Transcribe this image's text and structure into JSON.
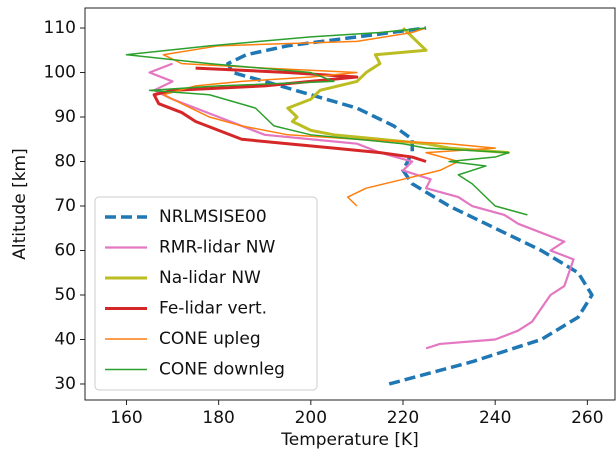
{
  "chart_data": {
    "type": "line",
    "xlabel": "Temperature [K]",
    "ylabel": "Altitude [km]",
    "xlim": [
      151,
      266
    ],
    "ylim": [
      26.4,
      114.5
    ],
    "xticks": [
      160,
      180,
      200,
      220,
      240,
      260
    ],
    "yticks": [
      30,
      40,
      50,
      60,
      70,
      80,
      90,
      100,
      110
    ],
    "legend": "lower left",
    "series": [
      {
        "name": "NRLMSISE00",
        "color": "#1f77b4",
        "style": "dashed",
        "x": [
          217,
          235,
          250,
          258,
          261,
          258,
          250,
          240,
          230,
          222,
          220,
          222,
          222,
          218,
          210,
          200,
          190,
          183,
          182,
          186,
          195,
          210,
          225
        ],
        "y": [
          30,
          35,
          40,
          45,
          50,
          55,
          60,
          65,
          70,
          75,
          78,
          82,
          85,
          88,
          92,
          95,
          98,
          100,
          102,
          104,
          106,
          108,
          110
        ]
      },
      {
        "name": "RMR-lidar NW",
        "color": "#e377c2",
        "style": "solid",
        "x": [
          225,
          228,
          240,
          245,
          248,
          250,
          252,
          255,
          256,
          257,
          252,
          255,
          250,
          245,
          242,
          235,
          232,
          225,
          226,
          220,
          222,
          215,
          210,
          200,
          190,
          185,
          180,
          175,
          170,
          166,
          170,
          165,
          170
        ],
        "y": [
          38,
          39,
          40,
          42,
          44,
          47,
          50,
          52,
          55,
          58,
          60,
          62,
          64,
          66,
          68,
          70,
          72,
          74,
          76,
          78,
          80,
          82,
          84,
          85,
          86,
          88,
          90,
          92,
          94,
          96,
          98,
          100,
          102
        ]
      },
      {
        "name": "Na-lidar NW",
        "color": "#bcbd22",
        "style": "solid",
        "x": [
          243,
          230,
          225,
          215,
          205,
          200,
          198,
          196,
          197,
          195,
          200,
          202,
          210,
          212,
          215,
          214,
          225,
          222,
          220
        ],
        "y": [
          82,
          83,
          84,
          85,
          86,
          87,
          88,
          89,
          90,
          92,
          94,
          96,
          98,
          100,
          102,
          104,
          105,
          108,
          110
        ]
      },
      {
        "name": "Fe-lidar vert.",
        "color": "#d62728",
        "style": "solid",
        "x": [
          225,
          222,
          215,
          205,
          195,
          185,
          180,
          175,
          172,
          167,
          166,
          170,
          190,
          200,
          210,
          195,
          175
        ],
        "y": [
          80,
          81,
          82,
          83,
          84,
          85,
          87,
          89,
          91,
          93,
          95,
          96,
          97,
          98,
          99,
          100,
          101
        ]
      },
      {
        "name": "CONE upleg",
        "color": "#ff7f0e",
        "style": "solid",
        "x": [
          210,
          208,
          212,
          220,
          228,
          232,
          225,
          240,
          230,
          210,
          195,
          185,
          178,
          172,
          168,
          175,
          185,
          200,
          210,
          190,
          172,
          168,
          180,
          210,
          222,
          225
        ],
        "y": [
          70,
          72,
          74,
          76,
          78,
          80,
          82,
          83,
          84,
          85,
          86,
          88,
          90,
          93,
          95,
          97,
          98,
          99,
          100,
          101,
          102,
          104,
          106,
          107,
          109,
          110
        ]
      },
      {
        "name": "CONE downleg",
        "color": "#2ca02c",
        "style": "solid",
        "x": [
          247,
          240,
          238,
          235,
          232,
          238,
          230,
          240,
          243,
          225,
          220,
          210,
          200,
          192,
          190,
          188,
          178,
          165,
          180,
          205,
          200,
          178,
          160,
          178,
          200,
          215,
          225
        ],
        "y": [
          68,
          70,
          72,
          75,
          77,
          79,
          80,
          81,
          82,
          83,
          84,
          85,
          86,
          88,
          90,
          92,
          95,
          96,
          97,
          98,
          100,
          102,
          104,
          106,
          108,
          109,
          110
        ]
      }
    ]
  }
}
